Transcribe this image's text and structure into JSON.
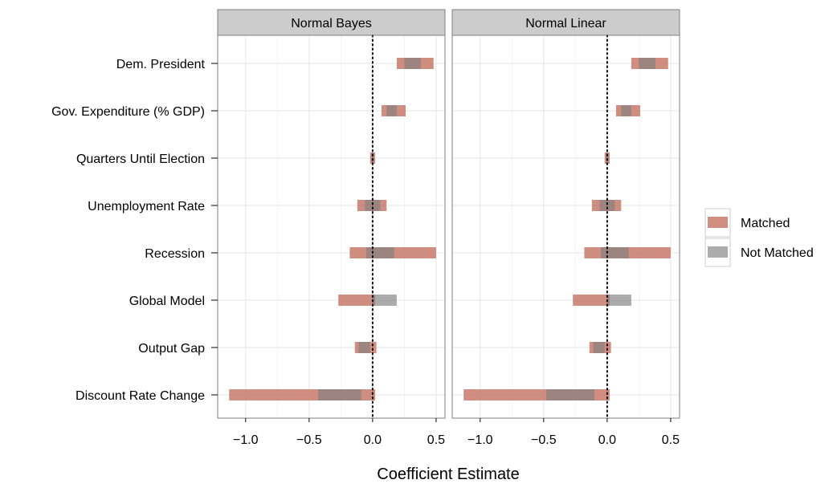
{
  "chart_data": {
    "type": "bar",
    "xlabel": "Coefficient Estimate",
    "xlim": [
      -1.22,
      0.57
    ],
    "xticks": [
      -1.0,
      -0.5,
      0.0,
      0.5
    ],
    "xtick_labels": [
      "−1.0",
      "−0.5",
      "0.0",
      "0.5"
    ],
    "reference_line": 0,
    "grid": true,
    "legend_position": "right",
    "categories": [
      "Dem. President",
      "Gov. Expenditure (% GDP)",
      "Quarters Until Election",
      "Unemployment Rate",
      "Recession",
      "Global Model",
      "Output Gap",
      "Discount Rate Change"
    ],
    "series": [
      {
        "name": "Matched",
        "color": "#c87a6a"
      },
      {
        "name": "Not Matched",
        "color": "#7f7f7f"
      }
    ],
    "panels": [
      {
        "title": "Normal Bayes",
        "intervals": {
          "Matched": [
            [
              0.19,
              0.48
            ],
            [
              0.07,
              0.26
            ],
            [
              -0.02,
              0.02
            ],
            [
              -0.12,
              0.11
            ],
            [
              -0.18,
              0.5
            ],
            [
              -0.27,
              0.02
            ],
            [
              -0.14,
              0.03
            ],
            [
              -1.13,
              0.02
            ]
          ],
          "Not Matched": [
            [
              0.25,
              0.38
            ],
            [
              0.11,
              0.19
            ],
            [
              -0.01,
              0.01
            ],
            [
              -0.06,
              0.06
            ],
            [
              -0.05,
              0.17
            ],
            [
              0.0,
              0.19
            ],
            [
              -0.11,
              -0.02
            ],
            [
              -0.43,
              -0.09
            ]
          ]
        }
      },
      {
        "title": "Normal Linear",
        "intervals": {
          "Matched": [
            [
              0.19,
              0.48
            ],
            [
              0.07,
              0.26
            ],
            [
              -0.02,
              0.02
            ],
            [
              -0.12,
              0.11
            ],
            [
              -0.18,
              0.5
            ],
            [
              -0.27,
              0.02
            ],
            [
              -0.14,
              0.03
            ],
            [
              -1.13,
              0.02
            ]
          ],
          "Not Matched": [
            [
              0.25,
              0.38
            ],
            [
              0.11,
              0.19
            ],
            [
              -0.01,
              0.01
            ],
            [
              -0.06,
              0.06
            ],
            [
              -0.05,
              0.17
            ],
            [
              0.0,
              0.19
            ],
            [
              -0.11,
              -0.02
            ],
            [
              -0.48,
              -0.1
            ]
          ]
        }
      }
    ]
  }
}
